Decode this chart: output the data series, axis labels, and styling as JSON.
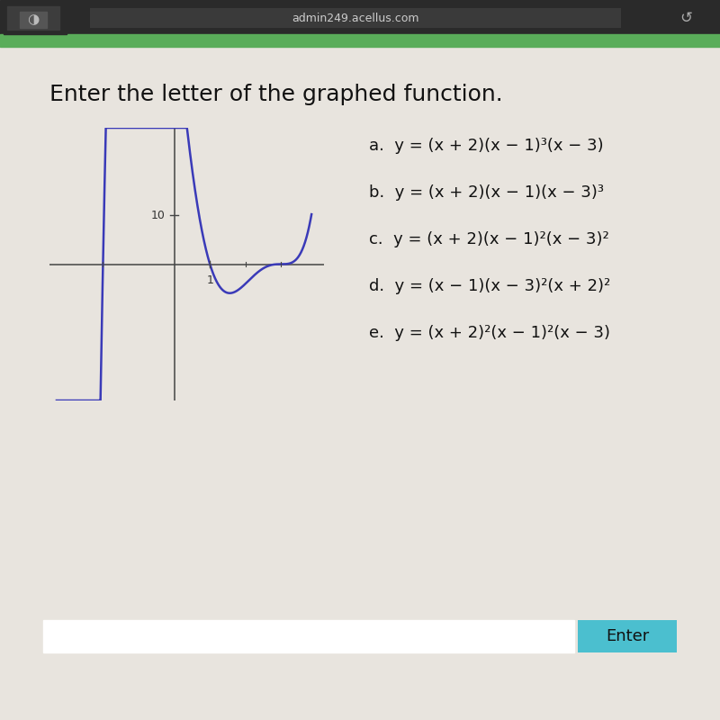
{
  "title": "Enter the letter of the graphed function.",
  "title_fontsize": 18,
  "options": [
    "a.  y = (x + 2)(x − 1)³(x − 3)",
    "b.  y = (x + 2)(x − 1)(x − 3)³",
    "c.  y = (x + 2)(x − 1)²(x − 3)²",
    "d.  y = (x − 1)(x − 3)²(x + 2)²",
    "e.  y = (x + 2)²(x − 1)²(x − 3)"
  ],
  "curve_color": "#3a3ab8",
  "bg_color": "#e8e4de",
  "content_bg": "#e8e4de",
  "axis_color": "#444444",
  "graph_xlim": [
    -3.5,
    4.2
  ],
  "graph_ylim": [
    -28,
    28
  ],
  "y_tick_label": "10",
  "x_tick_label": "1",
  "header_bg_color": "#2a2a2a",
  "green_bar_color": "#5aad5a",
  "enter_btn_color": "#4bbfcf",
  "enter_btn_text": "Enter",
  "url_text": "admin249.acellus.com",
  "input_box_color": "#ffffff",
  "options_fontsize": 13
}
